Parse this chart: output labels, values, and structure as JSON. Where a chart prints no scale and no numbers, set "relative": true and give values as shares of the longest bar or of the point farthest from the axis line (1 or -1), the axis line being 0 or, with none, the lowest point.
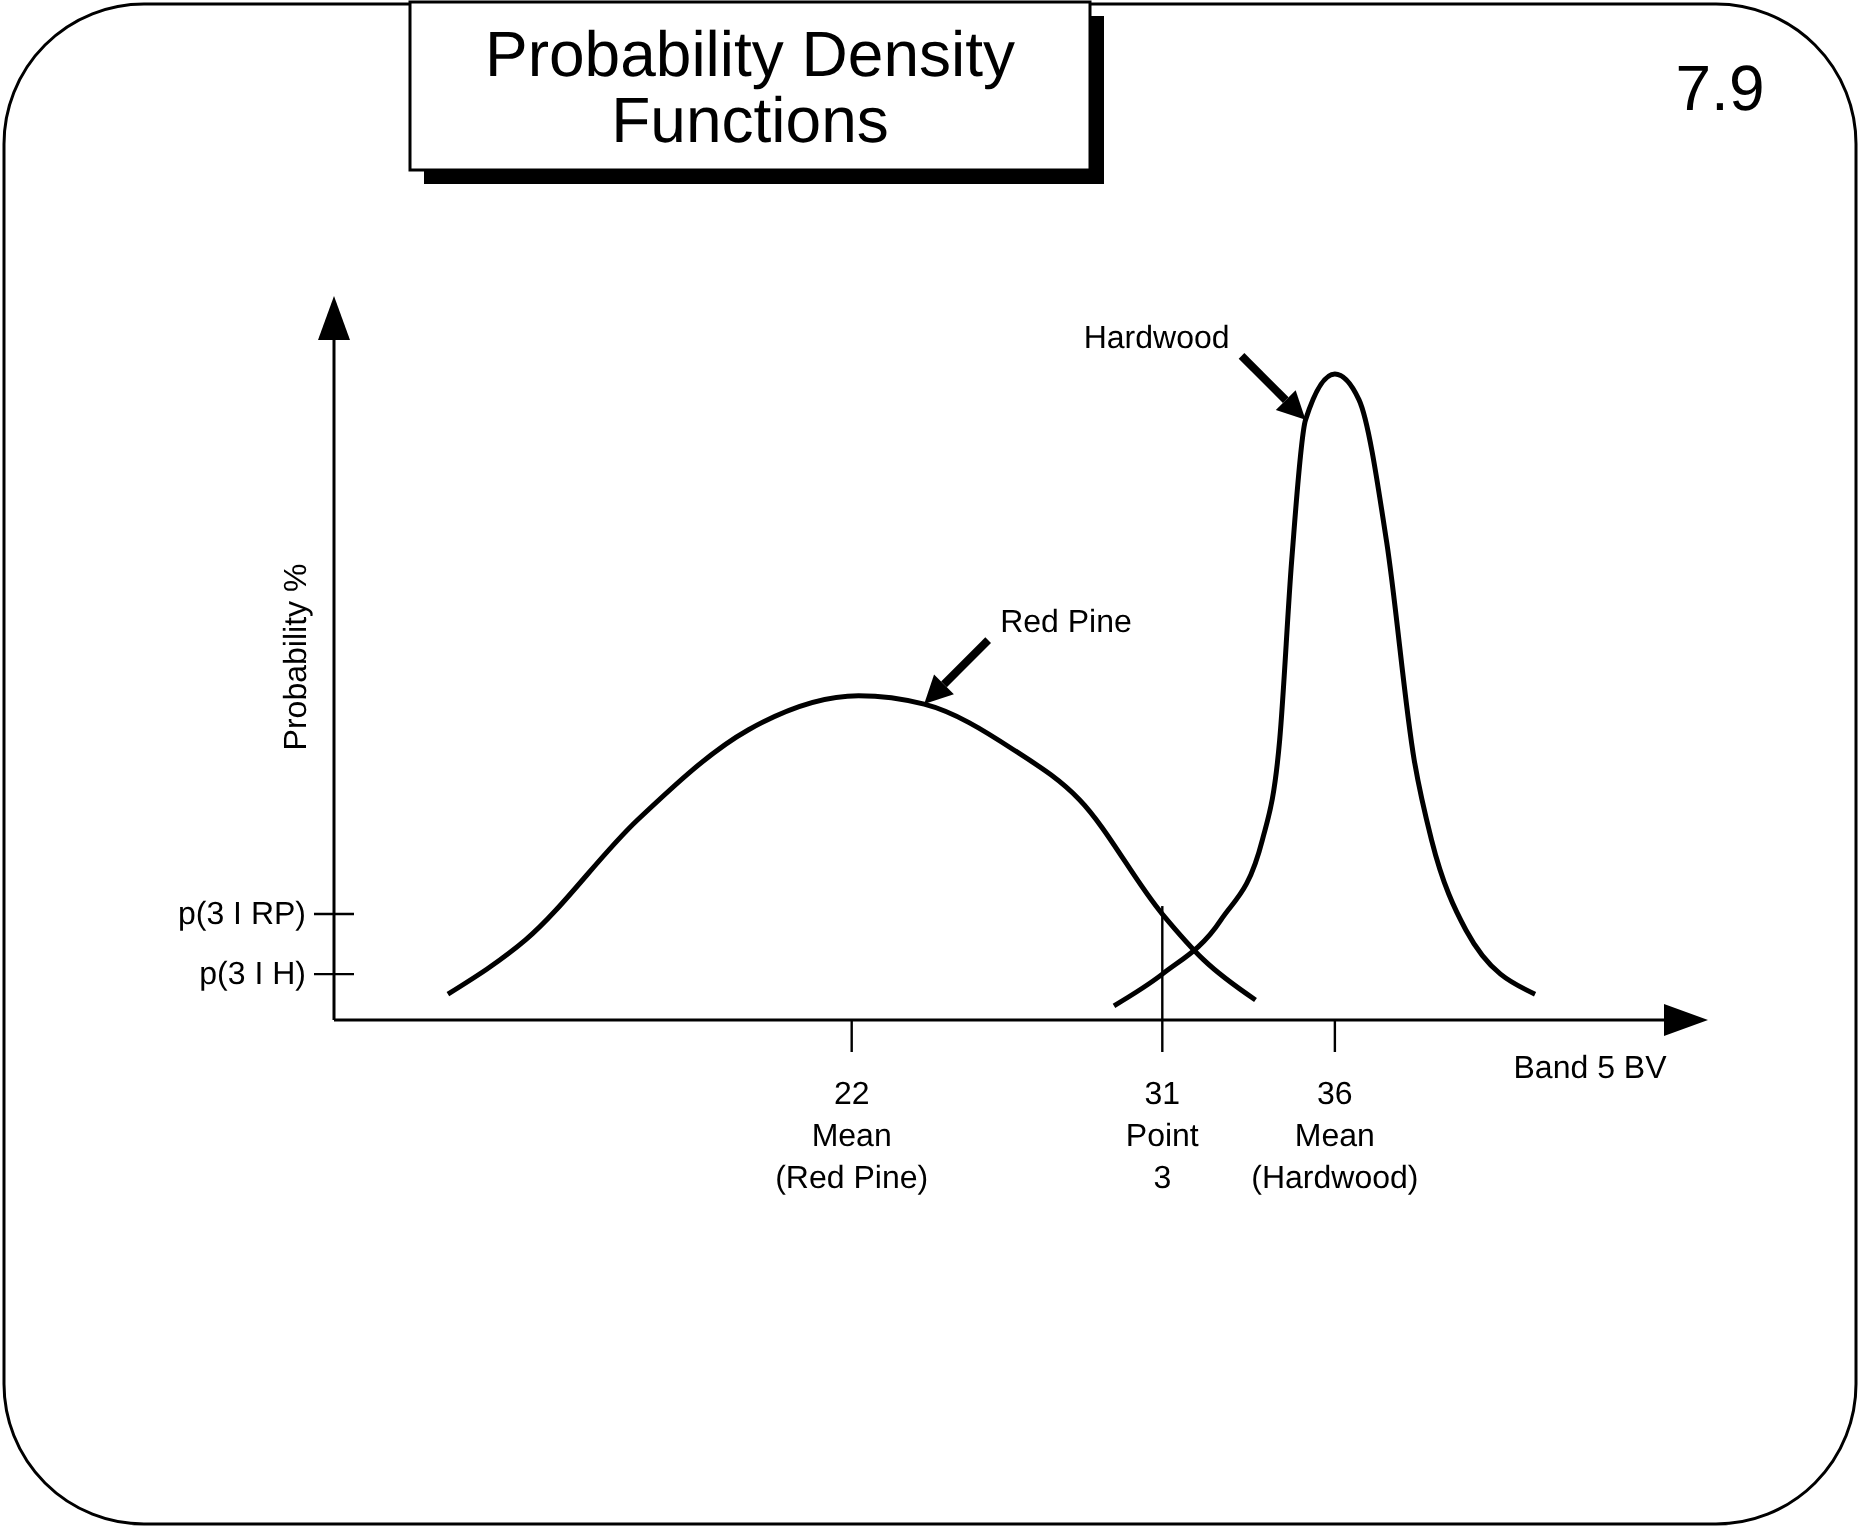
{
  "chart_data": {
    "type": "line",
    "title": "Probability Density Functions",
    "xlabel": "Band 5 BV",
    "ylabel": "Probability %",
    "annotations": [
      "7.9"
    ],
    "relative": true,
    "xlim": [
      7,
      46
    ],
    "xticks": [
      {
        "value": 22,
        "label": "22\nMean\n(Red Pine)"
      },
      {
        "value": 31,
        "label": "31\nPoint\n3"
      },
      {
        "value": 36,
        "label": "36\nMean\n(Hardwood)"
      }
    ],
    "series": [
      {
        "name": "Red Pine",
        "color": "#000000",
        "x": [
          10.3,
          12.55,
          15.8,
          19.0,
          22.2,
          24.1,
          26.7,
          28.6,
          31,
          32.2,
          33.7
        ],
        "values": [
          0.04,
          0.124,
          0.31,
          0.449,
          0.502,
          0.489,
          0.418,
          0.341,
          0.164,
          0.093,
          0.031
        ]
      },
      {
        "name": "Hardwood",
        "color": "#000000",
        "x": [
          29.6,
          31,
          32.7,
          33.9,
          34.4,
          34.75,
          35.15,
          36,
          36.7,
          37.5,
          38.3,
          38.8,
          39.8,
          41.8
        ],
        "values": [
          0.022,
          0.071,
          0.155,
          0.279,
          0.433,
          0.712,
          0.929,
          1,
          0.96,
          0.74,
          0.402,
          0.279,
          0.139,
          0.04
        ]
      }
    ],
    "ref_lines": [
      {
        "axis": "y",
        "value": 0.164,
        "label": "p(3 I RP)"
      },
      {
        "axis": "y",
        "value": 0.071,
        "label": "p(3 I H)"
      },
      {
        "axis": "x",
        "value": 31,
        "label": null
      }
    ],
    "marker": "none"
  }
}
